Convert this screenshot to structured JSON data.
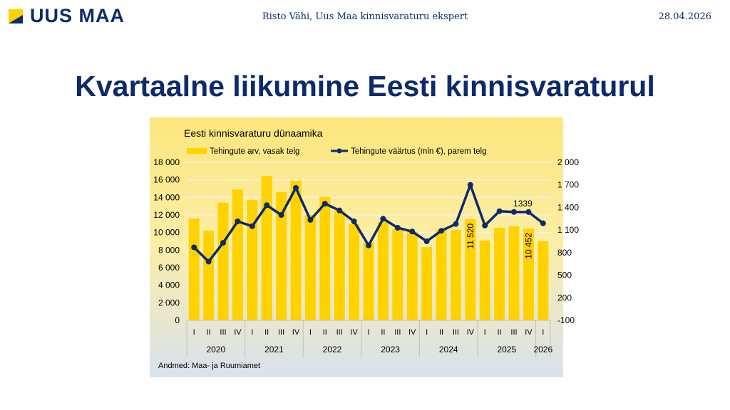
{
  "header": {
    "logo_text": "UUS MAA",
    "author": "Risto Vähi, Uus Maa kinnisvaraturu ekspert",
    "date": "28.04.2026"
  },
  "page_title": "Kvartaalne liikumine Eesti kinnisvaraturul",
  "colors": {
    "bar": "#ffd200",
    "line": "#0d2a6b",
    "title": "#0d2a6b"
  },
  "chart_data": {
    "type": "bar+line",
    "title": "Eesti kinnisvaraturu dünaamika",
    "source": "Andmed:  Maa- ja Ruumiamet",
    "quarters": [
      "I",
      "II",
      "III",
      "IV",
      "I",
      "II",
      "III",
      "IV",
      "I",
      "II",
      "III",
      "IV",
      "I",
      "II",
      "III",
      "IV",
      "I",
      "II",
      "III",
      "IV",
      "I",
      "II",
      "III",
      "IV",
      "I"
    ],
    "years": [
      {
        "label": "2020",
        "count": 4
      },
      {
        "label": "2021",
        "count": 4
      },
      {
        "label": "2022",
        "count": 4
      },
      {
        "label": "2023",
        "count": 4
      },
      {
        "label": "2024",
        "count": 4
      },
      {
        "label": "2025",
        "count": 4
      },
      {
        "label": "2026",
        "count": 1
      }
    ],
    "series": [
      {
        "name": "Tehingute arv, vasak telg",
        "type": "bar",
        "axis": "left",
        "values": [
          11600,
          10200,
          13400,
          14900,
          13700,
          16450,
          14600,
          15900,
          12000,
          14050,
          12500,
          10950,
          8850,
          11200,
          10400,
          10050,
          8350,
          10300,
          10300,
          11520,
          9100,
          10550,
          10700,
          10452,
          9000
        ]
      },
      {
        "name": "Tehingute väärtus (mln €), parem telg",
        "type": "line",
        "axis": "right",
        "values": [
          870,
          680,
          930,
          1215,
          1150,
          1430,
          1300,
          1660,
          1235,
          1450,
          1360,
          1215,
          895,
          1250,
          1130,
          1080,
          950,
          1090,
          1180,
          1700,
          1160,
          1350,
          1340,
          1339,
          1190
        ]
      }
    ],
    "data_labels": [
      {
        "series": 0,
        "index": 19,
        "text": "11 520"
      },
      {
        "series": 0,
        "index": 23,
        "text": "10 452"
      },
      {
        "series": 1,
        "index": 23,
        "text": "1339"
      }
    ],
    "left_axis": {
      "ylim": [
        0,
        18000
      ],
      "ticks": [
        0,
        2000,
        4000,
        6000,
        8000,
        10000,
        12000,
        14000,
        16000,
        18000
      ],
      "tick_labels": [
        "0",
        "2 000",
        "4 000",
        "6 000",
        "8 000",
        "10 000",
        "12 000",
        "14 000",
        "16 000",
        "18 000"
      ]
    },
    "right_axis": {
      "ylim": [
        -100,
        2000
      ],
      "ticks": [
        -100,
        200,
        500,
        800,
        1100,
        1400,
        1700,
        2000
      ],
      "tick_labels": [
        "-100",
        "200",
        "500",
        "800",
        "1 100",
        "1 400",
        "1 700",
        "2 000"
      ]
    },
    "grid": true,
    "legend": "top"
  }
}
